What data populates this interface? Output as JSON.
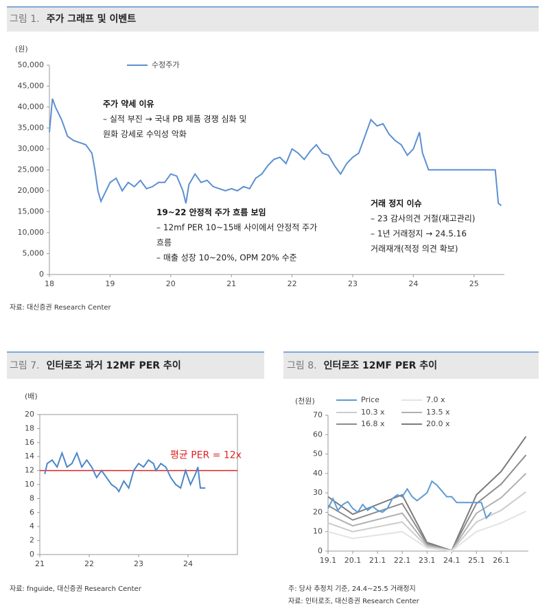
{
  "chart_data": [
    {
      "type": "line",
      "figure_label": "그림 1.",
      "title": "주가 그래프 및 이벤트",
      "y_unit": "(원)",
      "x": [
        18.0,
        18.05,
        18.1,
        18.2,
        18.3,
        18.4,
        18.5,
        18.6,
        18.7,
        18.75,
        18.8,
        18.85,
        18.9,
        19.0,
        19.1,
        19.2,
        19.3,
        19.4,
        19.5,
        19.6,
        19.7,
        19.8,
        19.9,
        20.0,
        20.1,
        20.2,
        20.25,
        20.3,
        20.4,
        20.5,
        20.6,
        20.7,
        20.8,
        20.9,
        21.0,
        21.1,
        21.2,
        21.3,
        21.4,
        21.5,
        21.6,
        21.7,
        21.8,
        21.9,
        22.0,
        22.1,
        22.2,
        22.3,
        22.4,
        22.5,
        22.6,
        22.7,
        22.8,
        22.9,
        23.0,
        23.1,
        23.2,
        23.3,
        23.4,
        23.5,
        23.6,
        23.7,
        23.8,
        23.9,
        24.0,
        24.1,
        24.15,
        24.25,
        25.35,
        25.4,
        25.45
      ],
      "series": [
        {
          "name": "수정주가",
          "color": "#5b8fd0",
          "values": [
            34000,
            42000,
            40000,
            37000,
            33000,
            32000,
            31500,
            31000,
            29000,
            25000,
            20000,
            17500,
            19000,
            22000,
            23000,
            20000,
            22000,
            21000,
            22500,
            20500,
            21000,
            22000,
            22000,
            24000,
            23500,
            20000,
            17000,
            21500,
            24000,
            22000,
            22500,
            21000,
            20500,
            20000,
            20500,
            20000,
            21000,
            20500,
            23000,
            24000,
            26000,
            27500,
            28000,
            26500,
            30000,
            29000,
            27500,
            29500,
            31000,
            29000,
            28500,
            26000,
            24000,
            26500,
            28000,
            29000,
            33000,
            37000,
            35500,
            36000,
            33500,
            32000,
            31000,
            28500,
            30000,
            34000,
            29000,
            25000,
            25000,
            17000,
            16500
          ]
        }
      ],
      "xlim": [
        18,
        25.5
      ],
      "xticks": [
        18,
        19,
        20,
        21,
        22,
        23,
        24,
        25
      ],
      "ylim": [
        0,
        50000
      ],
      "yticks": [
        0,
        {
          "value": 5000,
          "label": "5,000"
        },
        {
          "value": 10000,
          "label": "10,000"
        },
        {
          "value": 15000,
          "label": "15,000"
        },
        {
          "value": 20000,
          "label": "20,000"
        },
        {
          "value": 25000,
          "label": "25,000"
        },
        {
          "value": 30000,
          "label": "30,000"
        },
        {
          "value": 35000,
          "label": "35,000"
        },
        {
          "value": 40000,
          "label": "40,000"
        },
        {
          "value": 45000,
          "label": "45,000"
        },
        {
          "value": 50000,
          "label": "50,000"
        }
      ],
      "grid": false,
      "legend": "top",
      "annotations": [
        {
          "lines": [
            "주가 약세 이유",
            "– 실적 부진 → 국내 PB 제품 경쟁 심화 및",
            "원화 강세로 수익성 악화"
          ]
        },
        {
          "lines": [
            "19~22 안정적 주가 흐름 보임",
            "–  12mf PER 10~15배 사이에서 안정적 주가",
            "흐름",
            "– 매출 성장 10~20%, OPM 20% 수준"
          ]
        },
        {
          "lines": [
            "거래 정지 이슈",
            "– 23 감사의견 거절(재고관리)",
            "– 1년 거래정지 → 24.5.16",
            "거래재개(적정 의견 확보)"
          ]
        }
      ],
      "source": "자료: 대신증권 Research Center"
    },
    {
      "type": "line",
      "figure_label": "그림 7.",
      "title": "인터로조 과거 12MF PER 추이",
      "y_unit": "(배)",
      "x": [
        21.1,
        21.15,
        21.25,
        21.35,
        21.45,
        21.55,
        21.65,
        21.75,
        21.85,
        21.95,
        22.05,
        22.15,
        22.25,
        22.35,
        22.45,
        22.55,
        22.6,
        22.7,
        22.8,
        22.9,
        23.0,
        23.1,
        23.2,
        23.3,
        23.35,
        23.45,
        23.55,
        23.65,
        23.75,
        23.85,
        23.95,
        24.05,
        24.15,
        24.2,
        24.25,
        24.35
      ],
      "series": [
        {
          "color": "#4a86c8",
          "values": [
            11.5,
            13,
            13.5,
            12.5,
            14.5,
            12.5,
            13,
            14.5,
            12.5,
            13.5,
            12.5,
            11,
            12,
            11,
            10,
            9.5,
            9,
            10.5,
            9.5,
            12,
            13,
            12.5,
            13.5,
            13,
            12,
            13,
            12.5,
            11,
            10,
            9.5,
            12,
            10,
            11.5,
            12.5,
            9.5,
            9.5
          ]
        }
      ],
      "average": 12,
      "average_label": "평균 PER = 12x",
      "average_color": "#e02020",
      "xlim": [
        21,
        25
      ],
      "xticks": [
        21,
        22,
        23,
        24
      ],
      "ylim": [
        0,
        20
      ],
      "yticks": [
        0,
        2,
        4,
        6,
        8,
        10,
        12,
        14,
        16,
        18,
        20
      ],
      "grid": false,
      "frame": true,
      "source": "자료: fnguide, 대신증권 Research Center"
    },
    {
      "type": "line",
      "figure_label": "그림 8.",
      "title": "인터로조 12MF PER 추이",
      "y_unit": "(천원)",
      "series": [
        {
          "name": "Price",
          "color": "#5b9bd5",
          "x": [
            19.1,
            19.3,
            19.5,
            19.7,
            19.9,
            20.1,
            20.3,
            20.5,
            20.7,
            20.9,
            21.1,
            21.3,
            21.5,
            21.7,
            21.9,
            22.1,
            22.3,
            22.5,
            22.7,
            22.9,
            23.1,
            23.3,
            23.5,
            23.7,
            23.9,
            24.1,
            24.3,
            25.3,
            25.5,
            25.7
          ],
          "values": [
            22,
            27,
            21,
            24,
            25.5,
            22,
            20,
            24,
            21,
            23,
            21,
            20,
            22,
            27,
            29,
            28,
            32,
            28,
            26,
            28,
            30,
            36,
            34,
            31,
            28,
            28,
            25,
            25,
            17,
            20
          ]
        },
        {
          "name": "7.0 x",
          "color": "#e3e3e3",
          "x": [
            19.1,
            20.1,
            22.1,
            23.1,
            24.1,
            25.1,
            26.1,
            27.1
          ],
          "values": [
            10,
            6.5,
            10,
            1.6,
            0.1,
            10,
            14.5,
            20.5
          ]
        },
        {
          "name": "10.3 x",
          "color": "#cccccc",
          "x": [
            19.1,
            20.1,
            22.1,
            23.1,
            24.1,
            25.1,
            26.1,
            27.1
          ],
          "values": [
            14.5,
            10,
            15,
            2.3,
            0.2,
            15,
            21,
            30.5
          ]
        },
        {
          "name": "13.5 x",
          "color": "#b0b0b0",
          "x": [
            19.1,
            20.1,
            22.1,
            23.1,
            24.1,
            25.1,
            26.1,
            27.1
          ],
          "values": [
            19,
            13,
            19.5,
            3,
            0.2,
            19.5,
            27.5,
            40
          ]
        },
        {
          "name": "16.8 x",
          "color": "#8c8c8c",
          "x": [
            19.1,
            20.1,
            22.1,
            23.1,
            24.1,
            25.1,
            26.1,
            27.1
          ],
          "values": [
            23.5,
            16,
            24.5,
            3.8,
            0.3,
            24.5,
            34.5,
            49.5
          ]
        },
        {
          "name": "20.0 x",
          "color": "#7a7a7a",
          "x": [
            19.1,
            20.1,
            22.1,
            23.1,
            24.1,
            25.1,
            26.1,
            27.1
          ],
          "values": [
            28,
            19,
            29,
            4.5,
            0.3,
            29,
            41,
            59
          ]
        }
      ],
      "xlim": [
        19.1,
        27.2
      ],
      "xticks": [
        19.1,
        20.1,
        21.1,
        22.1,
        23.1,
        24.1,
        25.1,
        26.1
      ],
      "ylim": [
        0,
        70
      ],
      "yticks": [
        0,
        10,
        20,
        30,
        40,
        50,
        60,
        70
      ],
      "grid": false,
      "legend": "top",
      "note": "주: 당사 추정치 기준, 24.4~25.5 거래정지",
      "source": "자료: 인터로조, 대신증권 Research Center"
    }
  ]
}
